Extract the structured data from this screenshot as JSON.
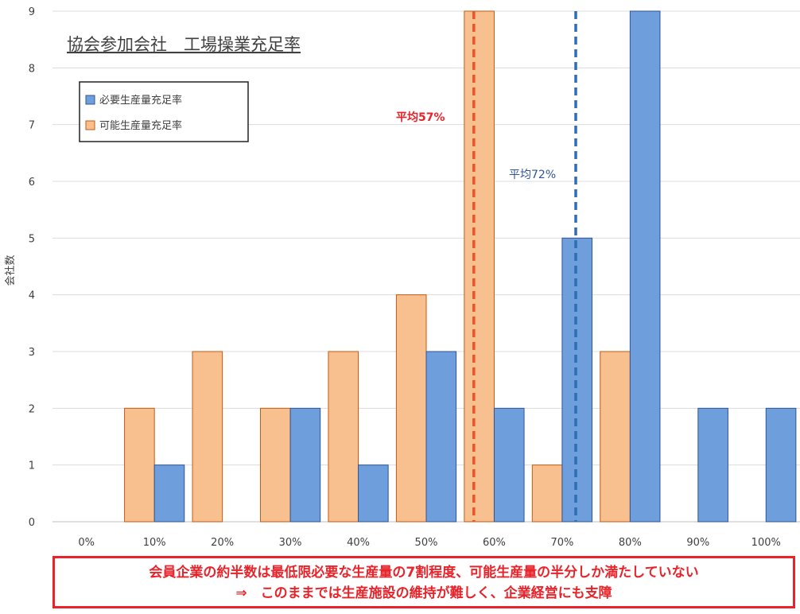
{
  "chart_data": {
    "type": "bar",
    "title": "協会参加会社　工場操業充足率",
    "ylabel": "会社数",
    "xlabel": "",
    "ylim": [
      0,
      9
    ],
    "yticks": [
      0,
      1,
      2,
      3,
      4,
      5,
      6,
      7,
      8,
      9
    ],
    "categories": [
      "0%",
      "10%",
      "20%",
      "30%",
      "40%",
      "50%",
      "60%",
      "70%",
      "80%",
      "90%",
      "100%"
    ],
    "series": [
      {
        "name": "可能生産量充足率",
        "color": "#f8c08e",
        "values": [
          0,
          2,
          3,
          2,
          3,
          4,
          9,
          1,
          3,
          0,
          0
        ]
      },
      {
        "name": "必要生産量充足率",
        "color": "#6e9fdc",
        "values": [
          0,
          1,
          0,
          2,
          1,
          3,
          2,
          5,
          9,
          2,
          2
        ]
      }
    ],
    "legend": {
      "position": "top-left",
      "order": [
        "必要生産量充足率",
        "可能生産量充足率"
      ]
    },
    "reference_lines": [
      {
        "label": "平均57%",
        "x_percent": 57,
        "color": "#e8552a",
        "label_color": "#e8232a"
      },
      {
        "label": "平均72%",
        "x_percent": 72,
        "color": "#2f6db5",
        "label_color": "#2f5597"
      }
    ],
    "grid": true
  },
  "footer": {
    "line1": "会員企業の約半数は最低限必要な生産量の7割程度、可能生産量の半分しか満たしていない",
    "line2": "⇒　このままでは生産施設の維持が難しく、企業経営にも支障"
  }
}
